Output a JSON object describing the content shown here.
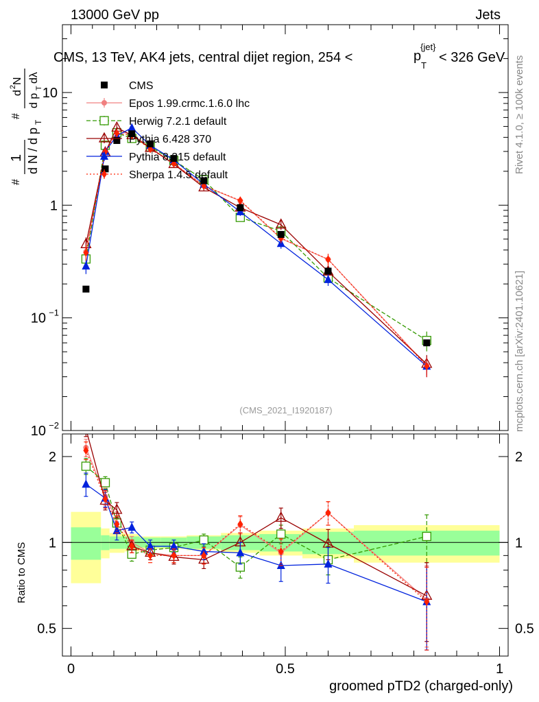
{
  "header": {
    "left": "13000 GeV pp",
    "right": "Jets",
    "title": "CMS, 13 TeV, AK4 jets, central dijet region, 254 <",
    "title_p": "p",
    "title_sub": "T",
    "title_sup": "{jet}",
    "title_end": "< 326 GeV",
    "side_rivet": "Rivet 4.1.0, ≥ 100k events",
    "side_mcplots": "mcplots.cern.ch [arXiv:2401.10621]",
    "watermark": "(CMS_2021_I1920187)"
  },
  "chart_data": {
    "type": "line",
    "xlabel": "groomed pTD2 (charged-only)",
    "ylabel_top": "1/N dN/dpT ... d2N/dpT dlambda",
    "ylabel_ratio": "Ratio to CMS",
    "xlim": [
      -0.02,
      1.02
    ],
    "ylim_main": [
      0.01,
      40
    ],
    "ylim_ratio": [
      0.4,
      2.4
    ],
    "x_ticks": [
      {
        "v": 0,
        "label": "0"
      },
      {
        "v": 0.5,
        "label": "0.5"
      },
      {
        "v": 1,
        "label": "1"
      }
    ],
    "y_ticks_main": [
      {
        "v": 0.01,
        "base": "10",
        "exp": "−2"
      },
      {
        "v": 0.1,
        "base": "10",
        "exp": "−1"
      },
      {
        "v": 1,
        "label": "1"
      },
      {
        "v": 10,
        "label": "10"
      }
    ],
    "y_ticks_ratio": [
      {
        "v": 0.5,
        "label": "0.5"
      },
      {
        "v": 1,
        "label": "1"
      },
      {
        "v": 2,
        "label": "2"
      }
    ],
    "bins": [
      0.0,
      0.07,
      0.09,
      0.125,
      0.16,
      0.21,
      0.27,
      0.35,
      0.44,
      0.54,
      0.66,
      1.0
    ],
    "x": [
      0.035,
      0.08,
      0.107,
      0.142,
      0.185,
      0.24,
      0.31,
      0.395,
      0.49,
      0.6,
      0.83
    ],
    "data": {
      "name": "CMS",
      "values": [
        0.18,
        2.1,
        3.75,
        4.3,
        3.5,
        2.6,
        1.65,
        0.95,
        0.55,
        0.26,
        0.06
      ],
      "band_inner": [
        0.13,
        0.06,
        0.05,
        0.05,
        0.04,
        0.04,
        0.05,
        0.06,
        0.07,
        0.09,
        0.1
      ],
      "band_outer": [
        0.28,
        0.12,
        0.08,
        0.07,
        0.05,
        0.05,
        0.06,
        0.08,
        0.1,
        0.12,
        0.15
      ]
    },
    "series": [
      {
        "name": "Epos 1.99.crmc.1.6.0 lhc",
        "color": "#f08080",
        "dash": "",
        "marker": "circle",
        "ratio": [
          2.15,
          1.45,
          1.2,
          1.0,
          0.92,
          0.9,
          0.9,
          1.15,
          0.92,
          1.27,
          0.63
        ],
        "rerr": [
          0.15,
          0.1,
          0.08,
          0.05,
          0.05,
          0.05,
          0.06,
          0.08,
          0.1,
          0.12,
          0.2
        ]
      },
      {
        "name": "Herwig 7.2.1 default",
        "color": "#339900",
        "dash": "6,3",
        "marker": "square",
        "ratio": [
          1.85,
          1.62,
          1.17,
          0.91,
          0.94,
          0.96,
          1.02,
          0.82,
          1.07,
          0.87,
          1.05
        ],
        "rerr": [
          0.12,
          0.08,
          0.06,
          0.05,
          0.04,
          0.04,
          0.05,
          0.07,
          0.08,
          0.1,
          0.2
        ]
      },
      {
        "name": "Pythia 6.428 370",
        "color": "#990000",
        "dash": "",
        "marker": "triangle-open",
        "ratio": [
          2.5,
          1.4,
          1.3,
          0.97,
          0.92,
          0.89,
          0.87,
          1.0,
          1.22,
          0.99,
          0.65
        ],
        "rerr": [
          0.15,
          0.1,
          0.08,
          0.05,
          0.05,
          0.05,
          0.06,
          0.08,
          0.1,
          0.12,
          0.2
        ]
      },
      {
        "name": "Pythia 8.315 default",
        "color": "#0022dd",
        "dash": "",
        "marker": "triangle",
        "ratio": [
          1.6,
          1.43,
          1.1,
          1.13,
          0.97,
          0.97,
          0.93,
          0.92,
          0.83,
          0.84,
          0.62
        ],
        "rerr": [
          0.15,
          0.1,
          0.08,
          0.05,
          0.05,
          0.05,
          0.06,
          0.08,
          0.1,
          0.12,
          0.2
        ]
      },
      {
        "name": "Sherpa 1.4.5 default",
        "color": "#ff2200",
        "dash": "2,3",
        "marker": "diamond",
        "ratio": [
          2.1,
          1.42,
          1.16,
          0.97,
          0.9,
          0.9,
          0.9,
          1.16,
          0.93,
          1.27,
          0.62
        ],
        "rerr": [
          0.15,
          0.1,
          0.08,
          0.05,
          0.05,
          0.05,
          0.06,
          0.08,
          0.1,
          0.12,
          0.2
        ]
      }
    ]
  }
}
